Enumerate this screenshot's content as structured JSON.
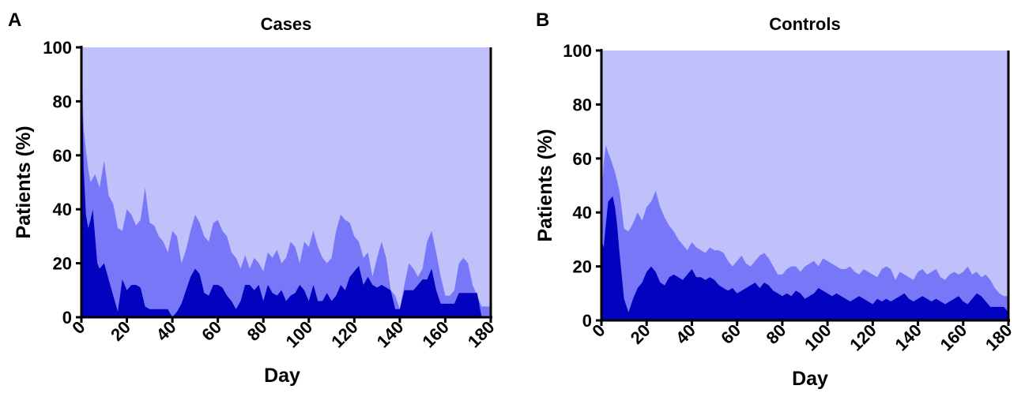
{
  "colors": {
    "top": "#c0c0fb",
    "mid": "#7777f7",
    "low": "#0202bf",
    "axis": "#000000"
  },
  "chart_data": [
    {
      "panel_label": "A",
      "type": "area",
      "title": "Cases",
      "xlabel": "Day",
      "ylabel": "Patients (%)",
      "xlim": [
        0,
        180
      ],
      "ylim": [
        0,
        100
      ],
      "xticks": [
        0,
        20,
        40,
        60,
        80,
        100,
        120,
        140,
        160,
        180
      ],
      "yticks": [
        0,
        20,
        40,
        60,
        80,
        100
      ],
      "stacked_boundaries": [
        {
          "x": [
            0,
            1,
            2,
            3,
            4,
            6,
            8,
            10,
            12,
            14,
            16,
            18,
            20,
            22,
            24,
            26,
            28,
            30,
            32,
            34,
            36,
            38,
            40,
            42,
            44,
            46,
            48,
            50,
            52,
            54,
            56,
            58,
            60,
            62,
            64,
            66,
            68,
            70,
            72,
            74,
            76,
            78,
            80,
            82,
            84,
            86,
            88,
            90,
            92,
            94,
            96,
            98,
            100,
            102,
            104,
            106,
            108,
            110,
            112,
            114,
            116,
            118,
            120,
            122,
            124,
            126,
            128,
            130,
            132,
            134,
            136,
            138,
            140,
            142,
            144,
            146,
            148,
            150,
            152,
            154,
            156,
            158,
            160,
            162,
            164,
            166,
            168,
            170,
            172,
            174,
            176,
            178,
            180
          ],
          "y": [
            100,
            70,
            62,
            55,
            50,
            53,
            48,
            58,
            45,
            42,
            33,
            32,
            40,
            38,
            34,
            36,
            48,
            35,
            34,
            30,
            28,
            24,
            32,
            30,
            20,
            25,
            32,
            38,
            35,
            30,
            28,
            35,
            36,
            32,
            30,
            24,
            22,
            18,
            23,
            18,
            22,
            20,
            17,
            24,
            22,
            25,
            20,
            22,
            28,
            26,
            20,
            28,
            26,
            32,
            26,
            22,
            20,
            22,
            32,
            38,
            36,
            35,
            30,
            28,
            22,
            24,
            15,
            22,
            28,
            22,
            10,
            8,
            3,
            12,
            20,
            18,
            15,
            18,
            28,
            32,
            24,
            15,
            8,
            8,
            10,
            20,
            22,
            20,
            12,
            8,
            4,
            4,
            4
          ]
        },
        {
          "x": [
            0,
            1,
            2,
            3,
            4,
            5,
            6,
            7,
            8,
            10,
            12,
            14,
            16,
            18,
            20,
            22,
            24,
            26,
            28,
            30,
            32,
            34,
            36,
            38,
            40,
            42,
            44,
            46,
            48,
            50,
            52,
            54,
            56,
            58,
            60,
            62,
            64,
            66,
            68,
            70,
            72,
            74,
            76,
            78,
            80,
            82,
            84,
            86,
            88,
            90,
            92,
            94,
            96,
            98,
            100,
            102,
            104,
            106,
            108,
            110,
            112,
            114,
            116,
            118,
            120,
            122,
            124,
            126,
            128,
            130,
            132,
            134,
            136,
            138,
            140,
            142,
            144,
            146,
            148,
            150,
            152,
            154,
            156,
            158,
            160,
            162,
            164,
            166,
            168,
            170,
            172,
            174,
            176,
            178,
            180
          ],
          "y": [
            100,
            55,
            38,
            33,
            36,
            40,
            30,
            20,
            18,
            20,
            14,
            8,
            2,
            14,
            10,
            12,
            12,
            11,
            4,
            3,
            3,
            3,
            3,
            3,
            0,
            2,
            5,
            10,
            15,
            18,
            16,
            9,
            8,
            12,
            12,
            11,
            8,
            6,
            3,
            6,
            12,
            12,
            10,
            12,
            6,
            12,
            9,
            8,
            10,
            6,
            8,
            9,
            12,
            10,
            6,
            12,
            6,
            6,
            9,
            6,
            8,
            12,
            10,
            15,
            17,
            19,
            12,
            15,
            12,
            11,
            12,
            11,
            10,
            3,
            3,
            10,
            10,
            10,
            12,
            14,
            14,
            18,
            10,
            5,
            5,
            5,
            5,
            9,
            9,
            9,
            9,
            9,
            0,
            0,
            0
          ]
        }
      ]
    },
    {
      "panel_label": "B",
      "type": "area",
      "title": "Controls",
      "xlabel": "Day",
      "ylabel": "Patients (%)",
      "xlim": [
        0,
        180
      ],
      "ylim": [
        0,
        100
      ],
      "xticks": [
        0,
        20,
        40,
        60,
        80,
        100,
        120,
        140,
        160,
        180
      ],
      "yticks": [
        0,
        20,
        40,
        60,
        80,
        100
      ],
      "stacked_boundaries": [
        {
          "x": [
            0,
            1,
            2,
            3,
            4,
            6,
            8,
            10,
            12,
            14,
            16,
            18,
            20,
            22,
            24,
            26,
            28,
            30,
            32,
            34,
            36,
            38,
            40,
            42,
            44,
            46,
            48,
            50,
            52,
            54,
            56,
            58,
            60,
            62,
            64,
            66,
            68,
            70,
            72,
            74,
            76,
            78,
            80,
            82,
            84,
            86,
            88,
            90,
            92,
            94,
            96,
            98,
            100,
            102,
            104,
            106,
            108,
            110,
            112,
            114,
            116,
            118,
            120,
            122,
            124,
            126,
            128,
            130,
            132,
            134,
            136,
            138,
            140,
            142,
            144,
            146,
            148,
            150,
            152,
            154,
            156,
            158,
            160,
            162,
            164,
            166,
            168,
            170,
            172,
            174,
            176,
            178,
            180
          ],
          "y": [
            45,
            58,
            65,
            62,
            60,
            55,
            48,
            34,
            33,
            36,
            40,
            37,
            42,
            44,
            48,
            42,
            38,
            35,
            33,
            30,
            28,
            26,
            29,
            27,
            26,
            25,
            27,
            26,
            26,
            25,
            22,
            20,
            22,
            24,
            21,
            20,
            22,
            24,
            25,
            23,
            20,
            17,
            17,
            19,
            20,
            20,
            18,
            20,
            21,
            22,
            20,
            23,
            22,
            21,
            20,
            19,
            19,
            20,
            18,
            17,
            19,
            18,
            17,
            16,
            19,
            20,
            19,
            15,
            18,
            17,
            16,
            15,
            18,
            19,
            17,
            18,
            19,
            16,
            15,
            17,
            18,
            17,
            18,
            20,
            17,
            18,
            16,
            17,
            15,
            12,
            10,
            9,
            9
          ]
        },
        {
          "x": [
            0,
            1,
            2,
            3,
            4,
            5,
            6,
            7,
            8,
            10,
            12,
            14,
            16,
            18,
            20,
            22,
            24,
            26,
            28,
            30,
            32,
            34,
            36,
            38,
            40,
            42,
            44,
            46,
            48,
            50,
            52,
            54,
            56,
            58,
            60,
            62,
            64,
            66,
            68,
            70,
            72,
            74,
            76,
            78,
            80,
            82,
            84,
            86,
            88,
            90,
            92,
            94,
            96,
            98,
            100,
            102,
            104,
            106,
            108,
            110,
            112,
            114,
            116,
            118,
            120,
            122,
            124,
            126,
            128,
            130,
            132,
            134,
            136,
            138,
            140,
            142,
            144,
            146,
            148,
            150,
            152,
            154,
            156,
            158,
            160,
            162,
            164,
            166,
            168,
            170,
            172,
            174,
            176,
            178,
            180
          ],
          "y": [
            30,
            27,
            36,
            44,
            45,
            46,
            42,
            35,
            25,
            8,
            3,
            8,
            12,
            14,
            18,
            20,
            18,
            14,
            13,
            16,
            17,
            16,
            15,
            17,
            19,
            16,
            16,
            15,
            16,
            15,
            13,
            12,
            11,
            12,
            10,
            11,
            12,
            13,
            14,
            12,
            14,
            13,
            11,
            10,
            9,
            10,
            9,
            11,
            10,
            8,
            9,
            10,
            12,
            11,
            10,
            9,
            10,
            9,
            8,
            7,
            8,
            9,
            8,
            7,
            6,
            8,
            7,
            8,
            7,
            8,
            9,
            10,
            8,
            7,
            8,
            9,
            8,
            7,
            8,
            7,
            6,
            7,
            8,
            9,
            7,
            6,
            8,
            10,
            9,
            7,
            5,
            5,
            5,
            5,
            3
          ]
        }
      ]
    }
  ]
}
